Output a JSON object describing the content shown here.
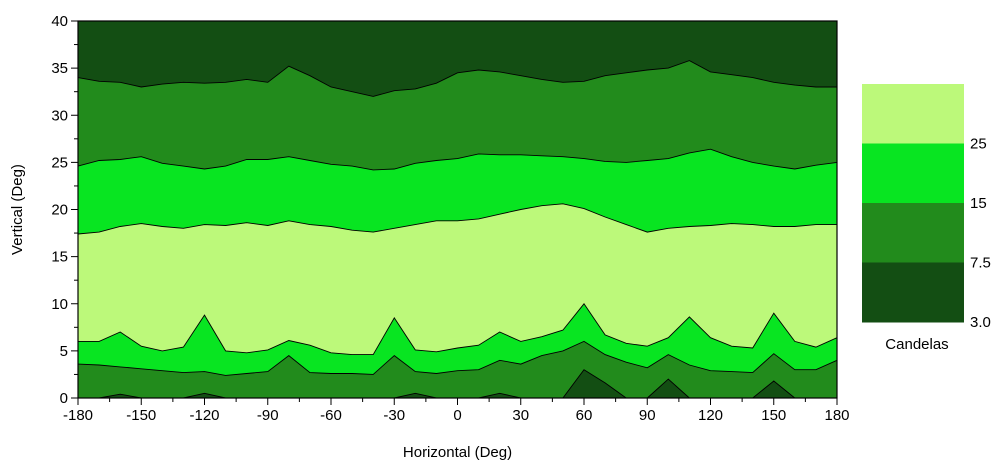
{
  "chart_data": {
    "type": "contour",
    "xlabel": "Horizontal (Deg)",
    "ylabel": "Vertical (Deg)",
    "xlim": [
      -180,
      180
    ],
    "ylim": [
      0,
      40
    ],
    "x_ticks": [
      -180,
      -150,
      -120,
      -90,
      -60,
      -30,
      0,
      30,
      60,
      90,
      120,
      150,
      180
    ],
    "y_ticks": [
      0,
      5,
      10,
      15,
      20,
      25,
      30,
      35,
      40
    ],
    "grid": false,
    "legend": {
      "title": "Candelas",
      "placement": "right",
      "levels": [
        "3.0",
        "7.5",
        "15",
        "25"
      ],
      "bands": [
        {
          "from": 3.0,
          "to": 7.5,
          "color": "#134e13"
        },
        {
          "from": 7.5,
          "to": 15,
          "color": "#228b1c"
        },
        {
          "from": 15,
          "to": 25,
          "color": "#08e521"
        },
        {
          "from": 25,
          "to": null,
          "color": "#bcf97a"
        }
      ]
    },
    "background_color": "#134e13",
    "x": [
      -180,
      -170,
      -160,
      -150,
      -140,
      -130,
      -120,
      -110,
      -100,
      -90,
      -80,
      -70,
      -60,
      -50,
      -40,
      -30,
      -20,
      -10,
      0,
      10,
      20,
      30,
      40,
      50,
      60,
      70,
      80,
      90,
      100,
      110,
      120,
      130,
      140,
      150,
      160,
      170,
      180
    ],
    "contours": [
      {
        "level": 7.5,
        "y": [
          34,
          33.6,
          33.5,
          33,
          33.3,
          33.5,
          33.4,
          33.5,
          33.8,
          33.5,
          35.2,
          34.2,
          33,
          32.5,
          32,
          32.6,
          32.8,
          33.4,
          34.5,
          34.8,
          34.6,
          34.2,
          33.8,
          33.5,
          33.6,
          34.2,
          34.5,
          34.8,
          35,
          35.8,
          34.6,
          34.3,
          34,
          33.5,
          33.2,
          33,
          33
        ]
      },
      {
        "level": 15,
        "y": [
          24.6,
          25.2,
          25.3,
          25.6,
          24.9,
          24.6,
          24.3,
          24.6,
          25.3,
          25.3,
          25.6,
          25.2,
          24.8,
          24.6,
          24.2,
          24.3,
          24.9,
          25.2,
          25.4,
          25.9,
          25.8,
          25.8,
          25.7,
          25.6,
          25.4,
          25.1,
          25,
          25.2,
          25.4,
          26,
          26.4,
          25.6,
          25,
          24.6,
          24.3,
          24.7,
          25
        ]
      },
      {
        "level": 25,
        "y": [
          17.4,
          17.6,
          18.2,
          18.5,
          18.2,
          18,
          18.4,
          18.3,
          18.6,
          18.3,
          18.8,
          18.4,
          18.2,
          17.8,
          17.6,
          18,
          18.4,
          18.8,
          18.8,
          19,
          19.5,
          20,
          20.4,
          20.6,
          20.1,
          19.2,
          18.4,
          17.6,
          18,
          18.2,
          18.3,
          18.5,
          18.4,
          18.2,
          18.2,
          18.4,
          18.4
        ]
      },
      {
        "level": 15,
        "y": [
          6,
          6,
          7,
          5.5,
          5,
          5.4,
          8.8,
          5,
          4.8,
          5.1,
          6.1,
          5.6,
          4.8,
          4.6,
          4.6,
          8.5,
          5.1,
          4.9,
          5.3,
          5.6,
          7,
          6,
          6.5,
          7.2,
          10,
          6.7,
          5.8,
          5.5,
          6.4,
          8.6,
          6.4,
          5.5,
          5.3,
          9,
          6,
          5.4,
          6.4
        ]
      },
      {
        "level": 7.5,
        "y": [
          3.6,
          3.5,
          3.3,
          3.1,
          2.9,
          2.7,
          2.8,
          2.4,
          2.6,
          2.8,
          4.5,
          2.7,
          2.6,
          2.6,
          2.5,
          4.5,
          2.8,
          2.6,
          2.9,
          3,
          4,
          3.6,
          4.5,
          5,
          6,
          4.6,
          3.8,
          3.2,
          4.6,
          3.5,
          2.9,
          2.8,
          2.7,
          4.7,
          3,
          3,
          4
        ]
      },
      {
        "level": 3.0,
        "y": [
          0,
          0,
          0.4,
          0,
          0,
          0,
          0.5,
          0,
          0,
          0,
          0,
          0,
          0,
          0,
          0,
          0,
          0.5,
          0,
          0,
          0,
          0.5,
          0,
          0,
          0,
          3,
          1.6,
          0,
          0,
          2,
          0,
          0,
          0,
          0,
          1.8,
          0,
          0,
          0
        ]
      }
    ],
    "fill_colors_top_to_bottom": [
      "#134e13",
      "#228b1c",
      "#08e521",
      "#bcf97a",
      "#08e521",
      "#228b1c",
      "#134e13"
    ]
  }
}
